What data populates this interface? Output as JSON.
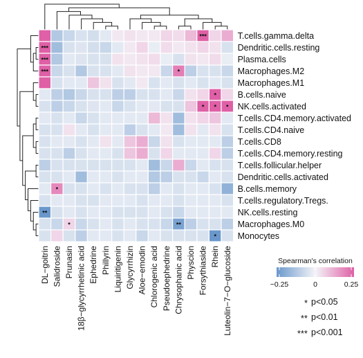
{
  "chart_data": {
    "type": "heatmap",
    "title": "",
    "rows": [
      "T.cells.gamma.delta",
      "Dendritic.cells.resting",
      "Plasma.cells",
      "Macrophages.M2",
      "Macrophages.M1",
      "B.cells.naive",
      "NK.cells.activated",
      "T.cells.CD4.memory.activated",
      "T.cells.CD4.naive",
      "T.cells.CD8",
      "T.cells.CD4.memory.resting",
      "T.cells.follicular.helper",
      "Dendritic.cells.activated",
      "B.cells.memory",
      "T.cells.regulatory.Tregs.",
      "NK.cells.resting",
      "Macrophages.M0",
      "Monocytes"
    ],
    "columns": [
      "DL−goitrin",
      "Salidroside",
      "Prunasin",
      "18β−glycyrrhetinic acid",
      "Ephedrine",
      "Phillyrin",
      "Liquiritigenin",
      "Glycyrrhizin",
      "Aloe−emodin",
      "Chlorogenic acid",
      "Pseudoephedrine",
      "Chrysophanic acid",
      "Physcion",
      "Forsythiaside",
      "Rhein",
      "Luteolin−7−O−glucoside"
    ],
    "values": [
      [
        0.3,
        -0.12,
        -0.08,
        -0.05,
        -0.06,
        -0.03,
        0.02,
        0.03,
        0.02,
        0.02,
        0.05,
        0.04,
        0.1,
        0.45,
        0.05,
        0.12
      ],
      [
        0.36,
        -0.15,
        -0.05,
        -0.04,
        -0.06,
        -0.08,
        -0.03,
        0.02,
        0.05,
        -0.02,
        0.04,
        0.02,
        0.03,
        0.05,
        0.03,
        -0.05
      ],
      [
        0.38,
        -0.12,
        -0.03,
        -0.04,
        -0.05,
        -0.05,
        0.03,
        0.02,
        0.03,
        0.04,
        -0.02,
        -0.05,
        0.03,
        0.02,
        0.04,
        -0.02
      ],
      [
        0.36,
        -0.08,
        -0.05,
        -0.12,
        -0.05,
        -0.05,
        -0.03,
        0.03,
        0.02,
        0.02,
        -0.08,
        0.2,
        -0.1,
        -0.05,
        -0.05,
        -0.08
      ],
      [
        0.28,
        -0.05,
        -0.03,
        -0.03,
        0.08,
        0.03,
        -0.05,
        -0.03,
        0.02,
        -0.05,
        -0.03,
        -0.05,
        -0.03,
        -0.05,
        -0.03,
        -0.05
      ],
      [
        -0.03,
        -0.1,
        -0.12,
        -0.08,
        -0.05,
        -0.05,
        -0.1,
        -0.1,
        -0.05,
        -0.05,
        -0.03,
        -0.08,
        0.03,
        0.05,
        0.28,
        0.05
      ],
      [
        -0.05,
        -0.1,
        -0.08,
        -0.05,
        -0.04,
        -0.03,
        -0.08,
        -0.05,
        -0.03,
        -0.03,
        -0.05,
        -0.05,
        0.08,
        0.25,
        0.3,
        0.25
      ],
      [
        -0.03,
        -0.05,
        -0.03,
        -0.08,
        -0.05,
        -0.03,
        -0.03,
        -0.03,
        -0.03,
        0.1,
        0.03,
        -0.15,
        0.03,
        0.05,
        0.08,
        -0.03
      ],
      [
        -0.05,
        -0.05,
        0.03,
        -0.03,
        -0.05,
        -0.03,
        -0.03,
        -0.1,
        -0.05,
        -0.03,
        0.02,
        -0.15,
        0.03,
        -0.03,
        0.03,
        -0.05
      ],
      [
        -0.05,
        -0.03,
        -0.03,
        -0.05,
        -0.03,
        0.03,
        -0.03,
        0.08,
        0.12,
        -0.08,
        0.03,
        -0.05,
        -0.03,
        -0.03,
        -0.03,
        -0.1
      ],
      [
        -0.05,
        -0.05,
        -0.1,
        -0.05,
        -0.03,
        -0.03,
        -0.05,
        0.08,
        0.12,
        -0.05,
        0.05,
        -0.03,
        -0.03,
        -0.03,
        0.05,
        -0.1
      ],
      [
        -0.1,
        -0.05,
        -0.05,
        -0.05,
        -0.05,
        -0.05,
        -0.05,
        -0.05,
        -0.03,
        -0.15,
        -0.08,
        0.12,
        -0.08,
        -0.03,
        -0.05,
        -0.05
      ],
      [
        -0.05,
        -0.05,
        -0.03,
        -0.15,
        -0.03,
        -0.03,
        -0.05,
        -0.03,
        -0.03,
        -0.12,
        -0.1,
        -0.05,
        -0.05,
        -0.08,
        -0.03,
        -0.05
      ],
      [
        -0.03,
        0.18,
        -0.05,
        -0.05,
        -0.03,
        -0.05,
        -0.03,
        -0.05,
        -0.05,
        -0.1,
        -0.03,
        -0.05,
        -0.03,
        -0.03,
        -0.05,
        -0.18
      ],
      [
        -0.05,
        -0.03,
        -0.03,
        -0.05,
        -0.05,
        -0.03,
        -0.03,
        -0.03,
        -0.05,
        -0.03,
        -0.03,
        -0.05,
        -0.03,
        -0.03,
        -0.03,
        -0.05
      ],
      [
        -0.4,
        -0.05,
        -0.03,
        -0.05,
        -0.03,
        -0.03,
        -0.05,
        -0.05,
        -0.05,
        -0.03,
        -0.05,
        -0.08,
        -0.03,
        -0.03,
        -0.03,
        -0.03
      ],
      [
        -0.05,
        -0.08,
        0.05,
        -0.08,
        -0.05,
        -0.03,
        -0.05,
        -0.03,
        -0.05,
        -0.05,
        -0.08,
        -0.22,
        -0.1,
        -0.05,
        -0.05,
        -0.1
      ],
      [
        -0.05,
        0.05,
        -0.05,
        -0.1,
        -0.03,
        -0.03,
        -0.05,
        -0.03,
        -0.08,
        -0.03,
        -0.05,
        -0.05,
        -0.05,
        -0.05,
        -0.28,
        -0.05
      ]
    ],
    "significance": [
      {
        "row": 0,
        "col": 13,
        "mark": "***"
      },
      {
        "row": 1,
        "col": 0,
        "mark": "***"
      },
      {
        "row": 2,
        "col": 0,
        "mark": "***"
      },
      {
        "row": 3,
        "col": 0,
        "mark": "***"
      },
      {
        "row": 3,
        "col": 11,
        "mark": "*"
      },
      {
        "row": 5,
        "col": 14,
        "mark": "*"
      },
      {
        "row": 6,
        "col": 13,
        "mark": "*"
      },
      {
        "row": 6,
        "col": 14,
        "mark": "*"
      },
      {
        "row": 6,
        "col": 15,
        "mark": "*"
      },
      {
        "row": 13,
        "col": 1,
        "mark": "*"
      },
      {
        "row": 15,
        "col": 0,
        "mark": "**"
      },
      {
        "row": 16,
        "col": 2,
        "mark": "*"
      },
      {
        "row": 16,
        "col": 11,
        "mark": "**"
      },
      {
        "row": 17,
        "col": 14,
        "mark": "*"
      }
    ],
    "color_scale": {
      "min": -0.25,
      "max": 0.25,
      "ticks": [
        -0.25,
        0,
        0.25
      ],
      "tick_labels": [
        "−0.25",
        "0",
        "0.25"
      ],
      "low_color": "#6a98cc",
      "mid_color": "#f4f4f8",
      "high_color": "#df60a6"
    },
    "legend": {
      "title": "Spearman's correlation",
      "placement": "bottom-right",
      "significance": [
        {
          "mark": "*",
          "label": "p<0.05"
        },
        {
          "mark": "**",
          "label": "p<0.01"
        },
        {
          "mark": "***",
          "label": "p<0.001"
        }
      ]
    }
  }
}
